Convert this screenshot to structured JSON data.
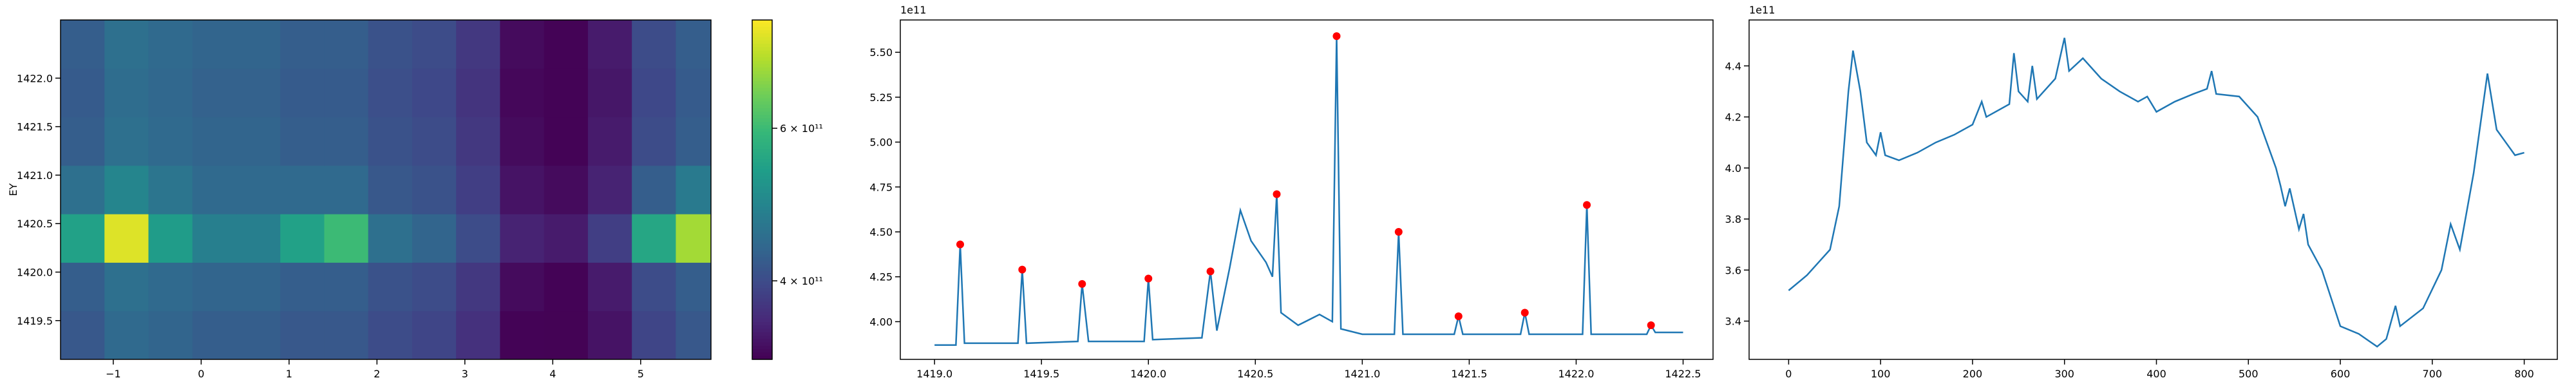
{
  "chart_data": [
    {
      "type": "heatmap",
      "ylabel": "EY",
      "x": [
        -1.35,
        -0.85,
        -0.35,
        0.15,
        0.65,
        1.15,
        1.65,
        2.15,
        2.65,
        3.15,
        3.65,
        4.15,
        4.65,
        5.15,
        5.65
      ],
      "y": [
        1419.35,
        1419.85,
        1420.35,
        1420.85,
        1421.35,
        1421.85,
        1422.35
      ],
      "z": [
        [
          4.2,
          4.5,
          4.4,
          4.3,
          4.3,
          4.2,
          4.2,
          4.0,
          3.9,
          3.6,
          3.0,
          2.99,
          3.2,
          3.9,
          4.2
        ],
        [
          4.3,
          4.6,
          4.5,
          4.4,
          4.4,
          4.3,
          4.3,
          4.1,
          4.0,
          3.7,
          3.1,
          3.0,
          3.3,
          4.0,
          4.3
        ],
        [
          5.5,
          7.2,
          5.4,
          4.9,
          4.9,
          5.5,
          6.0,
          4.6,
          4.4,
          4.0,
          3.4,
          3.3,
          3.8,
          5.6,
          6.8
        ],
        [
          4.6,
          5.0,
          4.7,
          4.5,
          4.5,
          4.5,
          4.5,
          4.2,
          4.1,
          3.8,
          3.2,
          3.1,
          3.4,
          4.3,
          4.8
        ],
        [
          4.3,
          4.6,
          4.5,
          4.4,
          4.4,
          4.3,
          4.3,
          4.1,
          4.0,
          3.7,
          3.1,
          3.0,
          3.3,
          4.0,
          4.3
        ],
        [
          4.25,
          4.55,
          4.45,
          4.35,
          4.35,
          4.25,
          4.25,
          4.05,
          3.95,
          3.65,
          3.05,
          3.0,
          3.25,
          3.95,
          4.25
        ],
        [
          4.3,
          4.6,
          4.5,
          4.4,
          4.4,
          4.3,
          4.3,
          4.1,
          4.0,
          3.7,
          3.1,
          3.0,
          3.3,
          4.0,
          4.3
        ]
      ],
      "xlim": [
        -1.6,
        5.8
      ],
      "ylim": [
        1419.1,
        1422.6
      ],
      "xticks": [
        {
          "value": -1,
          "label": "−1"
        },
        0,
        1,
        2,
        3,
        4,
        5
      ],
      "yticks": [
        1419.5,
        {
          "value": 1420,
          "label": "1420.0"
        },
        1420.5,
        {
          "value": 1421,
          "label": "1421.0"
        },
        1421.5,
        {
          "value": 1422,
          "label": "1422.0"
        }
      ],
      "colormap": "viridis",
      "clim": [
        2.97,
        7.42
      ],
      "colorbar_ticks": [
        {
          "value": 4,
          "label": "4 × 10¹¹"
        },
        {
          "value": 6,
          "label": "6 × 10¹¹"
        }
      ]
    },
    {
      "type": "line",
      "offset_label": "1e11",
      "color": "#1f77b4",
      "x": [
        1419.0,
        1419.1,
        1419.12,
        1419.14,
        1419.39,
        1419.41,
        1419.43,
        1419.67,
        1419.69,
        1419.72,
        1419.98,
        1420.0,
        1420.02,
        1420.25,
        1420.29,
        1420.32,
        1420.38,
        1420.43,
        1420.48,
        1420.55,
        1420.58,
        1420.6,
        1420.62,
        1420.7,
        1420.8,
        1420.86,
        1420.88,
        1420.9,
        1421.0,
        1421.15,
        1421.17,
        1421.19,
        1421.43,
        1421.45,
        1421.47,
        1421.74,
        1421.76,
        1421.78,
        1422.03,
        1422.05,
        1422.07,
        1422.33,
        1422.35,
        1422.37,
        1422.5
      ],
      "values": [
        3.87,
        3.87,
        4.43,
        3.88,
        3.88,
        4.29,
        3.88,
        3.89,
        4.21,
        3.89,
        3.89,
        4.24,
        3.9,
        3.91,
        4.28,
        3.95,
        4.3,
        4.62,
        4.45,
        4.33,
        4.25,
        4.71,
        4.05,
        3.98,
        4.04,
        4.0,
        5.59,
        3.96,
        3.93,
        3.93,
        4.5,
        3.93,
        3.93,
        4.03,
        3.93,
        3.93,
        4.05,
        3.93,
        3.93,
        4.65,
        3.93,
        3.93,
        3.98,
        3.94,
        3.94
      ],
      "markers": {
        "color": "#ff0000",
        "x": [
          1419.12,
          1419.41,
          1419.69,
          1420.0,
          1420.29,
          1420.6,
          1420.88,
          1421.17,
          1421.45,
          1421.76,
          1422.05,
          1422.35
        ],
        "values": [
          4.43,
          4.29,
          4.21,
          4.24,
          4.28,
          4.71,
          5.59,
          4.5,
          4.03,
          4.05,
          4.65,
          3.98
        ]
      },
      "xlim": [
        1418.84,
        1422.64
      ],
      "ylim": [
        3.79,
        5.68
      ],
      "xticks": [
        {
          "value": 1419,
          "label": "1419.0"
        },
        1419.5,
        {
          "value": 1420,
          "label": "1420.0"
        },
        1420.5,
        {
          "value": 1421,
          "label": "1421.0"
        },
        1421.5,
        {
          "value": 1422,
          "label": "1422.0"
        },
        1422.5
      ],
      "yticks": [
        {
          "value": 4,
          "label": "4.00"
        },
        4.25,
        {
          "value": 4.5,
          "label": "4.50"
        },
        4.75,
        {
          "value": 5,
          "label": "5.00"
        },
        5.25,
        {
          "value": 5.5,
          "label": "5.50"
        }
      ]
    },
    {
      "type": "line",
      "offset_label": "1e11",
      "color": "#1f77b4",
      "x": [
        0,
        20,
        35,
        45,
        55,
        65,
        70,
        78,
        85,
        95,
        100,
        105,
        120,
        140,
        160,
        180,
        200,
        210,
        215,
        240,
        245,
        250,
        260,
        265,
        270,
        290,
        300,
        305,
        320,
        340,
        360,
        380,
        390,
        400,
        420,
        440,
        455,
        460,
        465,
        490,
        510,
        530,
        535,
        540,
        545,
        555,
        560,
        565,
        580,
        600,
        620,
        640,
        650,
        660,
        665,
        690,
        710,
        720,
        730,
        745,
        760,
        770,
        780,
        790,
        800
      ],
      "values": [
        3.52,
        3.58,
        3.64,
        3.68,
        3.85,
        4.3,
        4.46,
        4.3,
        4.1,
        4.05,
        4.14,
        4.05,
        4.03,
        4.06,
        4.1,
        4.13,
        4.17,
        4.26,
        4.2,
        4.25,
        4.45,
        4.3,
        4.26,
        4.4,
        4.27,
        4.35,
        4.51,
        4.38,
        4.43,
        4.35,
        4.3,
        4.26,
        4.28,
        4.22,
        4.26,
        4.29,
        4.31,
        4.38,
        4.29,
        4.28,
        4.2,
        4.0,
        3.93,
        3.85,
        3.92,
        3.76,
        3.82,
        3.7,
        3.6,
        3.38,
        3.35,
        3.3,
        3.33,
        3.46,
        3.38,
        3.45,
        3.6,
        3.78,
        3.68,
        3.98,
        4.37,
        4.15,
        4.1,
        4.05,
        4.06
      ],
      "xlim": [
        -43,
        836
      ],
      "ylim": [
        3.25,
        4.58
      ],
      "xticks": [
        0,
        100,
        200,
        300,
        400,
        500,
        600,
        700,
        800
      ],
      "yticks": [
        3.4,
        3.6,
        3.8,
        {
          "value": 4,
          "label": "4.0"
        },
        4.2,
        4.4
      ]
    }
  ]
}
